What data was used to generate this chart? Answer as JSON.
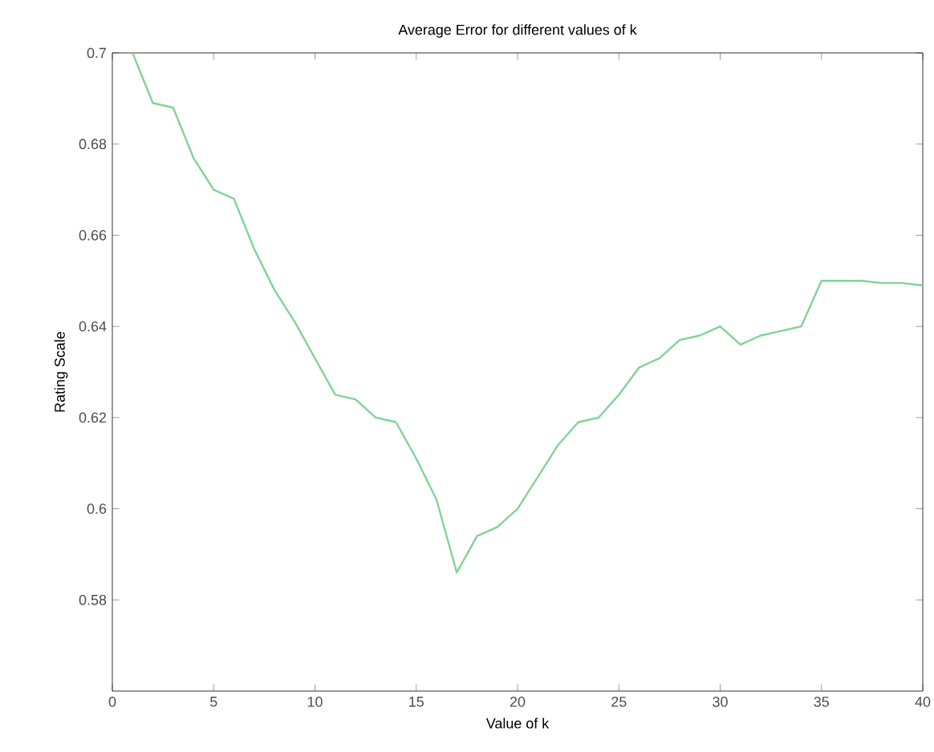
{
  "chart_data": {
    "type": "line",
    "title": "Average Error for different values of k",
    "xlabel": "Value of k",
    "ylabel": "Rating Scale",
    "x": [
      1,
      2,
      3,
      4,
      5,
      6,
      7,
      8,
      9,
      10,
      11,
      12,
      13,
      14,
      15,
      16,
      17,
      18,
      19,
      20,
      21,
      22,
      23,
      24,
      25,
      26,
      27,
      28,
      29,
      30,
      31,
      32,
      33,
      34,
      35,
      36,
      37,
      38,
      39,
      40
    ],
    "series": [
      {
        "color": "#80d496",
        "values": [
          0.7,
          0.689,
          0.688,
          0.677,
          0.67,
          0.668,
          0.657,
          0.648,
          0.641,
          0.633,
          0.625,
          0.624,
          0.62,
          0.619,
          0.611,
          0.602,
          0.586,
          0.594,
          0.596,
          0.6,
          0.607,
          0.614,
          0.619,
          0.62,
          0.625,
          0.631,
          0.633,
          0.637,
          0.638,
          0.64,
          0.636,
          0.638,
          0.639,
          0.64,
          0.65,
          0.65,
          0.65,
          0.6495,
          0.6495,
          0.649
        ]
      }
    ],
    "xlim": [
      0,
      40
    ],
    "ylim": [
      0.56,
      0.7
    ],
    "xticks": [
      0,
      5,
      10,
      15,
      20,
      25,
      30,
      35,
      40
    ],
    "yticks": [
      0.58,
      0.6,
      0.62,
      0.64,
      0.66,
      0.68,
      0.7
    ],
    "grid": false
  }
}
